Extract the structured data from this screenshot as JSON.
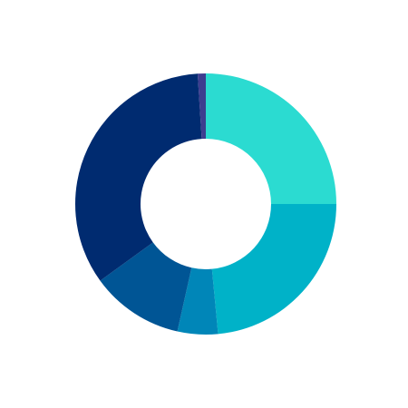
{
  "chart_data": {
    "type": "pie",
    "style": "donut",
    "legend": "none",
    "grid": false,
    "series": [
      {
        "slices": [
          {
            "value": 25.0,
            "color": "#2bdbd1"
          },
          {
            "value": 23.5,
            "color": "#00b2c8"
          },
          {
            "value": 5.0,
            "color": "#0086b8"
          },
          {
            "value": 11.5,
            "color": "#005595"
          },
          {
            "value": 34.0,
            "color": "#002b70"
          },
          {
            "value": 1.0,
            "color": "#3d3d8f"
          }
        ]
      }
    ]
  }
}
